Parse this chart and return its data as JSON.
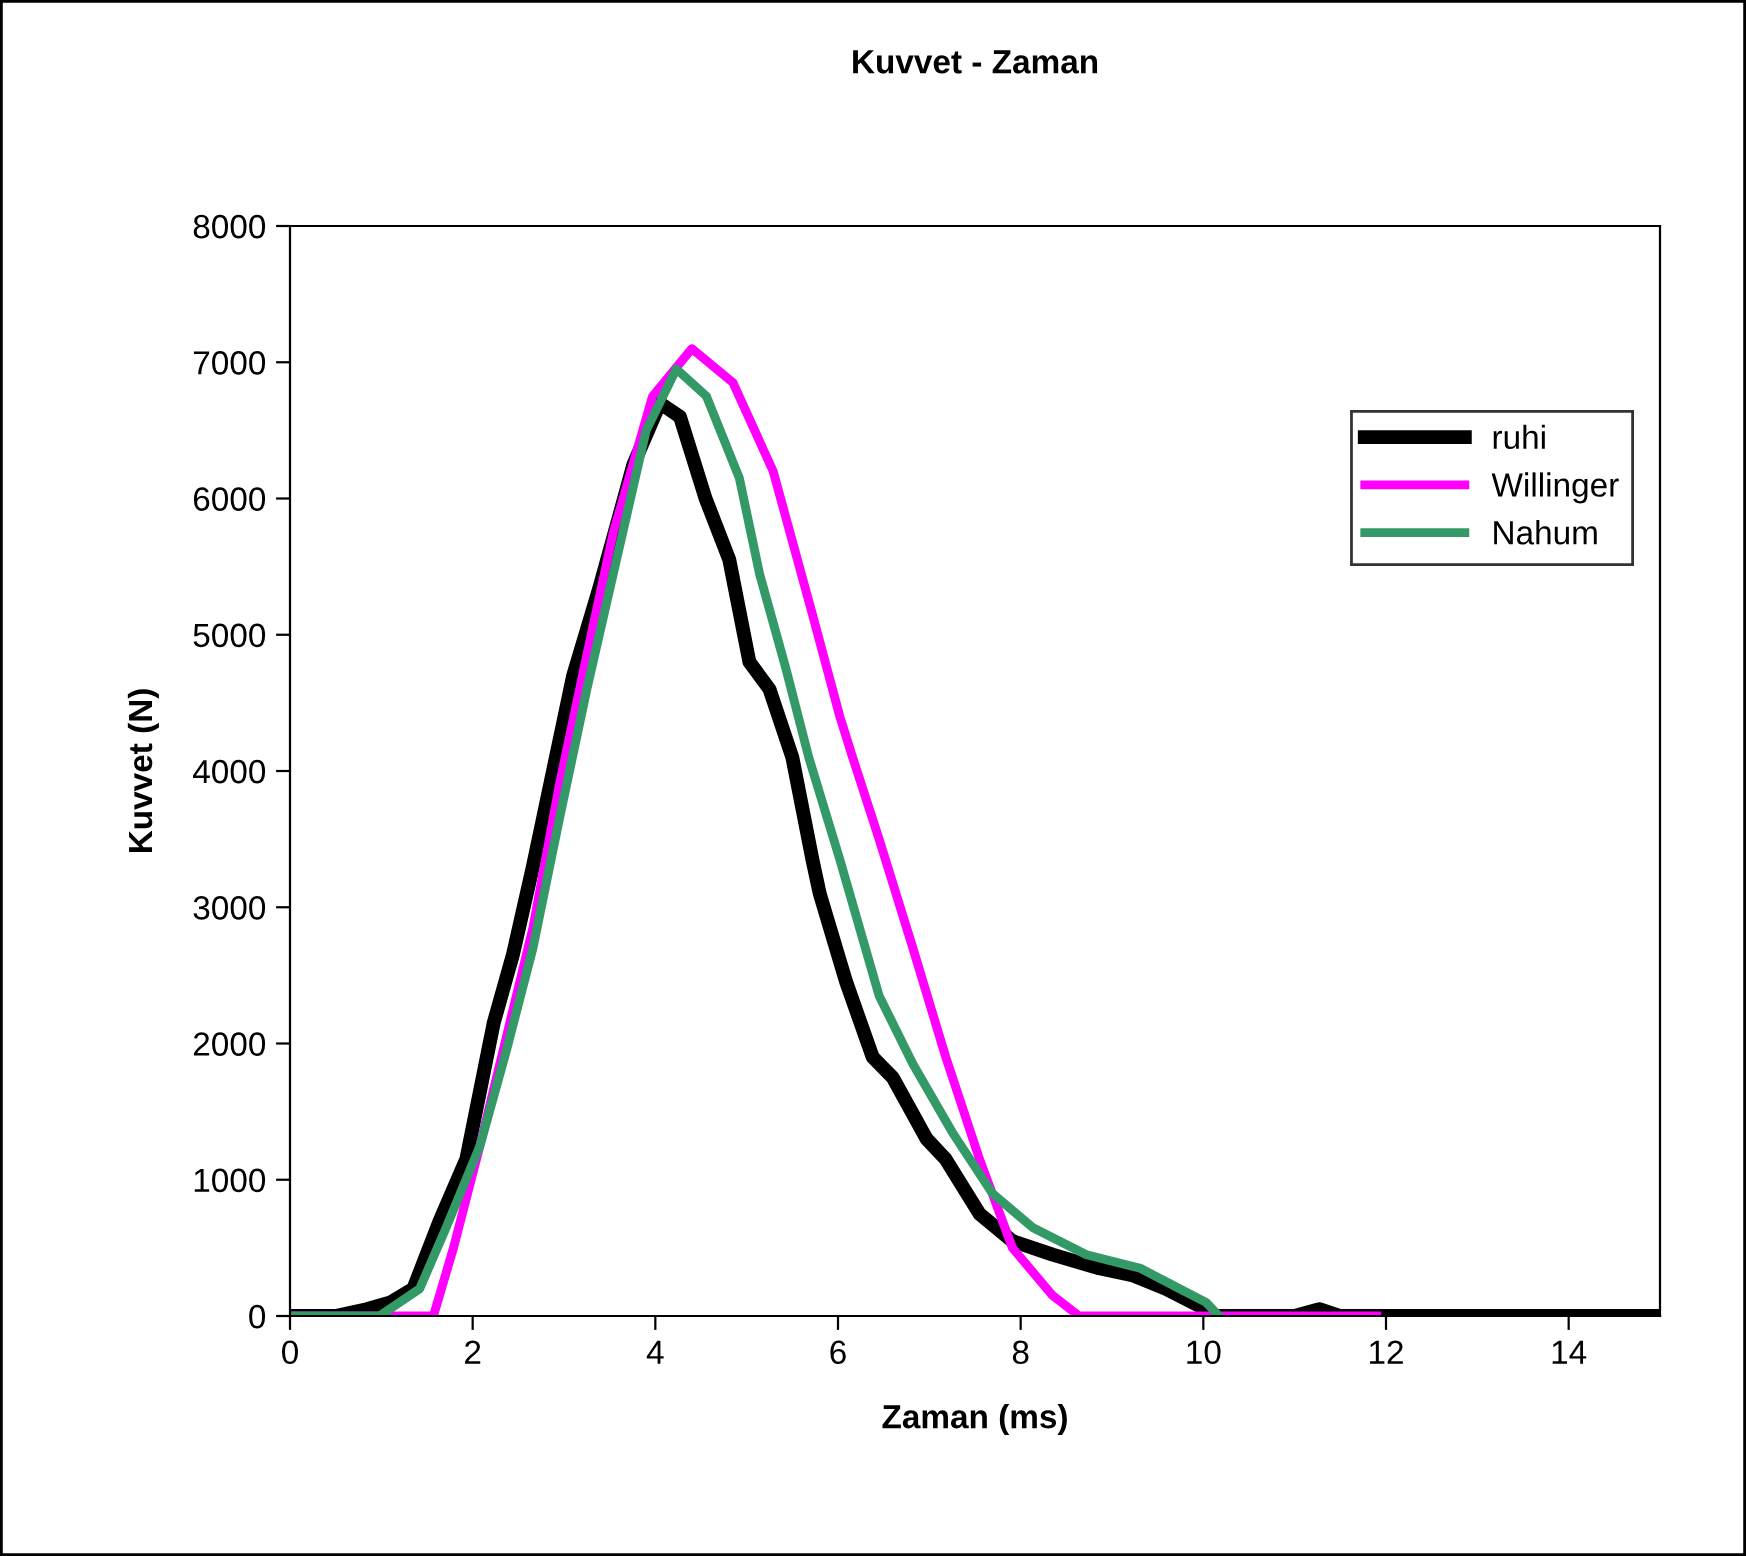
{
  "chart_data": {
    "type": "line",
    "title": "Kuvvet - Zaman",
    "xlabel": "Zaman (ms)",
    "ylabel": "Kuvvet (N)",
    "xlim": [
      0,
      15
    ],
    "xticks": [
      0,
      2,
      4,
      6,
      8,
      10,
      12,
      14
    ],
    "ylim": [
      0,
      8000
    ],
    "yticks": [
      0,
      1000,
      2000,
      3000,
      4000,
      5000,
      6000,
      7000,
      8000
    ],
    "grid": false,
    "legend": "top right",
    "marker": "none",
    "line_style": "solid",
    "series": [
      {
        "name": "ruhi",
        "color": "#000000",
        "x": [
          0,
          0.5,
          0.84,
          1.1,
          1.35,
          1.64,
          1.93,
          2.23,
          2.44,
          2.66,
          2.88,
          3.1,
          3.39,
          3.76,
          4.05,
          4.27,
          4.55,
          4.81,
          5.03,
          5.25,
          5.5,
          5.72,
          5.8,
          6.09,
          6.38,
          6.6,
          6.97,
          7.18,
          7.55,
          7.91,
          8.35,
          8.86,
          9.22,
          9.59,
          10.03,
          10.1,
          11.0,
          11.27,
          11.5,
          15
        ],
        "values": [
          0,
          0,
          50,
          100,
          200,
          700,
          1150,
          2150,
          2650,
          3300,
          4000,
          4700,
          5350,
          6250,
          6700,
          6600,
          6000,
          5550,
          4800,
          4600,
          4100,
          3350,
          3100,
          2450,
          1900,
          1750,
          1300,
          1150,
          750,
          550,
          450,
          350,
          300,
          200,
          50,
          0,
          0,
          50,
          0,
          0
        ]
      },
      {
        "name": "Willinger",
        "color": "#ff00ff",
        "x": [
          0,
          1.57,
          1.79,
          2.08,
          2.37,
          2.66,
          2.95,
          3.25,
          3.54,
          3.97,
          4.4,
          4.85,
          5.29,
          5.72,
          6.02,
          6.16,
          6.45,
          6.82,
          7.18,
          7.55,
          7.91,
          8.35,
          8.64,
          8.9,
          11.9
        ],
        "values": [
          0,
          0,
          500,
          1250,
          2050,
          2850,
          3900,
          4850,
          5750,
          6750,
          7100,
          6850,
          6200,
          5150,
          4400,
          4100,
          3500,
          2700,
          1900,
          1150,
          500,
          150,
          0,
          0,
          0
        ]
      },
      {
        "name": "Nahum",
        "color": "#339966",
        "x": [
          0,
          0.98,
          1.42,
          1.71,
          2.08,
          2.37,
          2.66,
          2.95,
          3.25,
          3.54,
          3.9,
          4.23,
          4.56,
          4.92,
          5.14,
          5.43,
          5.68,
          6.02,
          6.45,
          6.82,
          7.25,
          7.69,
          8.13,
          8.72,
          9.31,
          9.74,
          10.03,
          10.17
        ],
        "values": [
          0,
          0,
          200,
          650,
          1250,
          1950,
          2700,
          3650,
          4600,
          5450,
          6500,
          6950,
          6750,
          6150,
          5450,
          4750,
          4100,
          3350,
          2350,
          1850,
          1350,
          900,
          650,
          450,
          350,
          200,
          100,
          0
        ]
      }
    ]
  }
}
